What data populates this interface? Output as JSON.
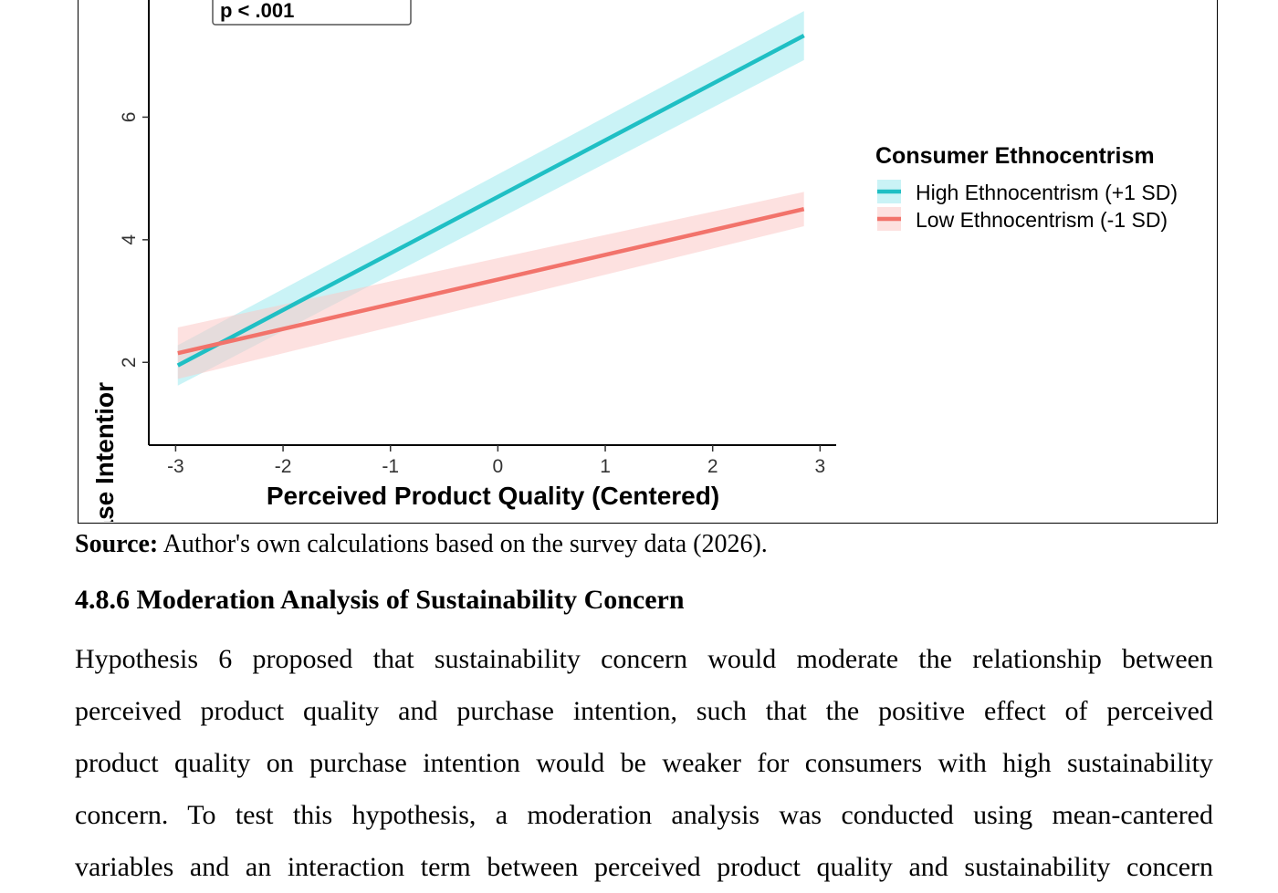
{
  "chart_data": {
    "type": "line",
    "xlabel": "Perceived Product Quality (Centered)",
    "ylabel": "Predicted Purchase Intentior",
    "xlim": [
      -3.25,
      3.15
    ],
    "ylim": [
      0.65,
      8.0
    ],
    "x_ticks": [
      -3,
      -2,
      -1,
      0,
      1,
      2,
      3
    ],
    "y_ticks": [
      2,
      4,
      6
    ],
    "annotation": "p < .001",
    "legend": {
      "title": "Consumer Ethnocentrism",
      "placement": "right"
    },
    "series": [
      {
        "name": "High Ethnocentrism (+1 SD)",
        "color": "#1fbfc4",
        "band_color": "#9ee9ef",
        "x": [
          -2.98,
          2.85
        ],
        "y": [
          1.95,
          7.33
        ],
        "ci_halfwidth": [
          0.33,
          0.4
        ]
      },
      {
        "name": "Low Ethnocentrism (-1 SD)",
        "color": "#f2736b",
        "band_color": "#fbc9c6",
        "x": [
          -2.98,
          2.85
        ],
        "y": [
          2.15,
          4.5
        ],
        "ci_halfwidth": [
          0.42,
          0.28
        ]
      }
    ],
    "grid": false
  },
  "source": {
    "label": "Source:",
    "text": " Author's own calculations based on the survey data (2026)."
  },
  "section": {
    "heading": "4.8.6 Moderation Analysis of Sustainability Concern",
    "paragraph_lines": [
      "Hypothesis 6 proposed that sustainability concern would moderate the relationship between",
      "perceived product quality and purchase intention, such that the positive effect of perceived",
      "product quality on purchase intention would be weaker for consumers with high sustainability",
      "concern. To test this hypothesis, a moderation analysis was conducted using mean-cantered",
      "variables and an interaction term between perceived product quality and sustainability concern"
    ]
  }
}
